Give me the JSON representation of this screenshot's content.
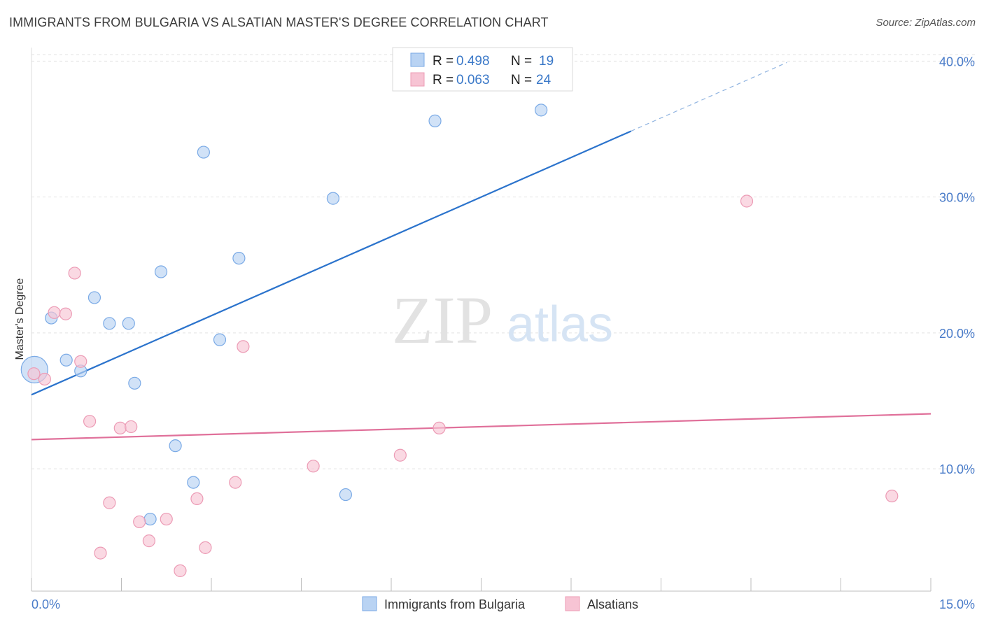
{
  "title": "IMMIGRANTS FROM BULGARIA VS ALSATIAN MASTER'S DEGREE CORRELATION CHART",
  "source": "Source: ZipAtlas.com",
  "watermark": {
    "zip": "ZIP",
    "atlas": "atlas"
  },
  "colors": {
    "blue_fill": "#b9d3f3",
    "blue_stroke": "#7aaae6",
    "blue_line": "#2b73cc",
    "pink_fill": "#f7c4d4",
    "pink_stroke": "#ec9bb5",
    "pink_line": "#e0709a",
    "grid": "#e3e3e3",
    "axis_text": "#4a7cc9"
  },
  "chart_data": {
    "type": "scatter",
    "xlabel": "",
    "ylabel": "Master's Degree",
    "xlim": [
      0,
      15
    ],
    "ylim": [
      1,
      41
    ],
    "x_tick_labels": [
      "0.0%",
      "15.0%"
    ],
    "y_ticks": [
      10,
      20,
      30,
      40
    ],
    "y_tick_labels": [
      "10.0%",
      "20.0%",
      "30.0%",
      "40.0%"
    ],
    "legend": [
      {
        "r_label": "R =",
        "r_value": "0.498",
        "n_label": "N =",
        "n_value": "19"
      },
      {
        "r_label": "R =",
        "r_value": "0.063",
        "n_label": "N =",
        "n_value": "24"
      }
    ],
    "series": [
      {
        "name": "Immigrants from Bulgaria",
        "color": "blue",
        "points": [
          {
            "x": 0.05,
            "y": 17.3,
            "big": true
          },
          {
            "x": 0.33,
            "y": 21.1
          },
          {
            "x": 0.58,
            "y": 18.0
          },
          {
            "x": 0.82,
            "y": 17.2
          },
          {
            "x": 1.05,
            "y": 22.6
          },
          {
            "x": 1.3,
            "y": 20.7
          },
          {
            "x": 1.62,
            "y": 20.7
          },
          {
            "x": 1.72,
            "y": 16.3
          },
          {
            "x": 2.16,
            "y": 24.5
          },
          {
            "x": 1.98,
            "y": 6.3
          },
          {
            "x": 2.4,
            "y": 11.7
          },
          {
            "x": 2.7,
            "y": 9.0
          },
          {
            "x": 2.87,
            "y": 33.3
          },
          {
            "x": 3.14,
            "y": 19.5
          },
          {
            "x": 3.46,
            "y": 25.5
          },
          {
            "x": 5.03,
            "y": 29.9
          },
          {
            "x": 5.24,
            "y": 8.1
          },
          {
            "x": 6.73,
            "y": 35.6
          },
          {
            "x": 8.5,
            "y": 36.4
          }
        ],
        "trend": {
          "x0": 0.0,
          "y0": 15.45,
          "x1": 10.0,
          "y1": 34.85,
          "dash_to_x": 12.6,
          "dash_to_y": 39.9
        }
      },
      {
        "name": "Alsatians",
        "color": "pink",
        "points": [
          {
            "x": 0.04,
            "y": 17.0
          },
          {
            "x": 0.22,
            "y": 16.6
          },
          {
            "x": 0.38,
            "y": 21.5
          },
          {
            "x": 0.57,
            "y": 21.4
          },
          {
            "x": 0.72,
            "y": 24.4
          },
          {
            "x": 0.82,
            "y": 17.9
          },
          {
            "x": 0.97,
            "y": 13.5
          },
          {
            "x": 1.15,
            "y": 3.8
          },
          {
            "x": 1.3,
            "y": 7.5
          },
          {
            "x": 1.48,
            "y": 13.0
          },
          {
            "x": 1.66,
            "y": 13.1
          },
          {
            "x": 1.8,
            "y": 6.1
          },
          {
            "x": 1.96,
            "y": 4.7
          },
          {
            "x": 2.25,
            "y": 6.3
          },
          {
            "x": 2.48,
            "y": 2.5
          },
          {
            "x": 2.76,
            "y": 7.8
          },
          {
            "x": 2.9,
            "y": 4.2
          },
          {
            "x": 3.4,
            "y": 9.0
          },
          {
            "x": 3.53,
            "y": 19.0
          },
          {
            "x": 4.7,
            "y": 10.2
          },
          {
            "x": 6.15,
            "y": 11.0
          },
          {
            "x": 6.8,
            "y": 13.0
          },
          {
            "x": 11.93,
            "y": 29.7
          },
          {
            "x": 14.35,
            "y": 8.0
          }
        ],
        "trend": {
          "x0": 0.0,
          "y0": 12.15,
          "x1": 15.0,
          "y1": 14.05
        }
      }
    ]
  }
}
